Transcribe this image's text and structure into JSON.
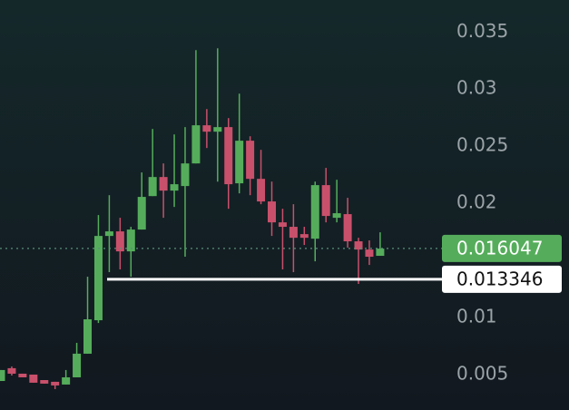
{
  "chart_data": {
    "type": "candlestick",
    "open": [
      0.00444,
      0.00556,
      0.00508,
      0.005,
      0.00452,
      0.00437,
      0.00413,
      0.00476,
      0.00683,
      0.00976,
      0.01714,
      0.01754,
      0.01579,
      0.0177,
      0.02063,
      0.0223,
      0.02111,
      0.02151,
      0.02349,
      0.02683,
      0.02627,
      0.02667,
      0.02175,
      0.02548,
      0.02214,
      0.02016,
      0.01833,
      0.01794,
      0.0173,
      0.0169,
      0.02159,
      0.01873,
      0.01905,
      0.01667,
      0.01595,
      0.0154
    ],
    "high": [
      0.0054,
      0.00571,
      0.00508,
      0.005,
      0.00452,
      0.00437,
      0.0054,
      0.00778,
      0.01357,
      0.01897,
      0.02071,
      0.01873,
      0.01794,
      0.0227,
      0.02651,
      0.02349,
      0.02603,
      0.02667,
      0.03341,
      0.02825,
      0.03357,
      0.02746,
      0.0296,
      0.02587,
      0.02468,
      0.0219,
      0.01952,
      0.01992,
      0.01794,
      0.0219,
      0.0231,
      0.02206,
      0.02048,
      0.01698,
      0.01675,
      0.01746
    ],
    "low": [
      0.00444,
      0.00492,
      0.00476,
      0.00429,
      0.00421,
      0.00373,
      0.00413,
      0.00476,
      0.00683,
      0.00952,
      0.01397,
      0.01421,
      0.01357,
      0.0177,
      0.02063,
      0.01873,
      0.01968,
      0.01532,
      0.02349,
      0.02484,
      0.0219,
      0.01952,
      0.02087,
      0.02071,
      0.01992,
      0.01714,
      0.01421,
      0.01397,
      0.01635,
      0.01492,
      0.01833,
      0.01833,
      0.01611,
      0.01294,
      0.0146,
      0.0154
    ],
    "close": [
      0.0054,
      0.00508,
      0.00476,
      0.00429,
      0.00421,
      0.00405,
      0.00476,
      0.00683,
      0.00984,
      0.01714,
      0.01754,
      0.01579,
      0.0177,
      0.02056,
      0.0223,
      0.02111,
      0.02167,
      0.02349,
      0.02683,
      0.02627,
      0.02667,
      0.02167,
      0.02548,
      0.02214,
      0.02016,
      0.01833,
      0.01794,
      0.01698,
      0.01698,
      0.02159,
      0.01889,
      0.01913,
      0.01667,
      0.01595,
      0.01532,
      0.01603
    ],
    "up_color": "#55ad5b",
    "down_color": "#c9506b",
    "ylim": [
      0.0019,
      0.0378
    ],
    "yticks": [
      0.005,
      0.01,
      0.02,
      0.025,
      0.03,
      0.035
    ],
    "last_price": 0.016047,
    "marked_price": 0.013346
  }
}
